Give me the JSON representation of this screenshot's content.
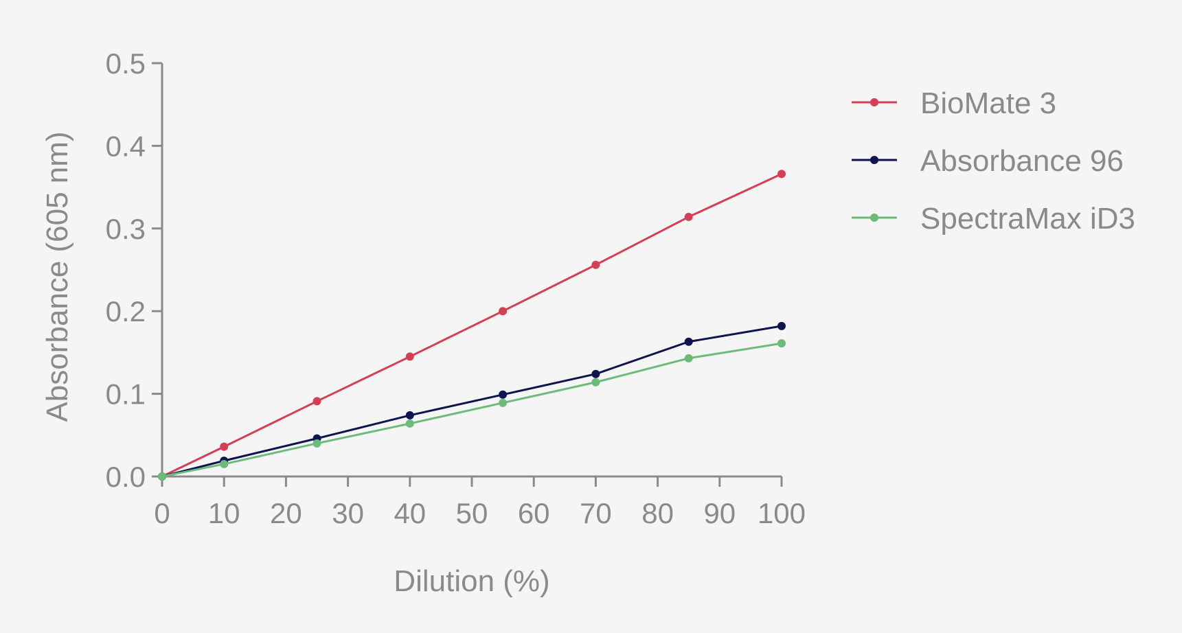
{
  "chart_data": {
    "type": "line",
    "title": "",
    "xlabel": "Dilution (%)",
    "ylabel": "Absorbance (605 nm)",
    "xlim": [
      0,
      100
    ],
    "ylim": [
      0,
      0.5
    ],
    "x_ticks": [
      0,
      10,
      20,
      30,
      40,
      50,
      60,
      70,
      80,
      90,
      100
    ],
    "y_ticks": [
      0.0,
      0.1,
      0.2,
      0.3,
      0.4,
      0.5
    ],
    "x_tick_labels": [
      "0",
      "10",
      "20",
      "30",
      "40",
      "50",
      "60",
      "70",
      "80",
      "90",
      "100"
    ],
    "y_tick_labels": [
      "0.0",
      "0.1",
      "0.2",
      "0.3",
      "0.4",
      "0.5"
    ],
    "grid": false,
    "legend_position": "top-right",
    "x": [
      0,
      10,
      25,
      40,
      55,
      70,
      85,
      100
    ],
    "series": [
      {
        "name": "BioMate 3",
        "color": "#d43f55",
        "values": [
          0,
          0.036,
          0.091,
          0.145,
          0.2,
          0.256,
          0.314,
          0.366
        ]
      },
      {
        "name": "Absorbance 96",
        "color": "#0f1450",
        "values": [
          0,
          0.019,
          0.046,
          0.074,
          0.099,
          0.124,
          0.163,
          0.182
        ]
      },
      {
        "name": "SpectraMax iD3",
        "color": "#6dbb7b",
        "values": [
          0,
          0.015,
          0.04,
          0.064,
          0.089,
          0.114,
          0.143,
          0.161
        ]
      }
    ]
  }
}
